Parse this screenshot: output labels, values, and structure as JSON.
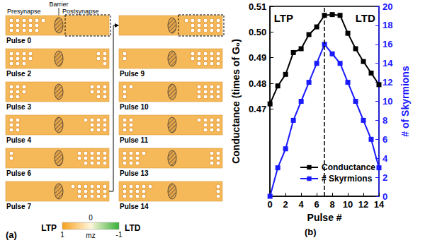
{
  "panel_a": {
    "letter": "(a)",
    "labels": {
      "presynapse": "Presynapse",
      "barrier": "Barrier",
      "postsynapse": "Postsynapse"
    },
    "columns": [
      {
        "title": "LTP",
        "frames": [
          {
            "label": "Pulse 0",
            "pulse": 0
          },
          {
            "label": "Pulse 2",
            "pulse": 2
          },
          {
            "label": "Pulse 3",
            "pulse": 3
          },
          {
            "label": "Pulse 4",
            "pulse": 4
          },
          {
            "label": "Pulse 6",
            "pulse": 6
          },
          {
            "label": "Pulse 7",
            "pulse": 7
          }
        ]
      },
      {
        "title": "LTD",
        "frames": [
          {
            "pulse": 7
          },
          {
            "label": "Pulse 9",
            "pulse": 9
          },
          {
            "label": "Pulse 10",
            "pulse": 10
          },
          {
            "label": "Pulse 11",
            "pulse": 11
          },
          {
            "label": "Pulse 13",
            "pulse": 13
          },
          {
            "label": "Pulse 14",
            "pulse": 14
          }
        ]
      }
    ],
    "colorbar": {
      "title": "mz",
      "range": [
        1,
        -1
      ],
      "ticks": [
        1,
        0,
        -1
      ],
      "colors": [
        "#f7a01e",
        "#fff6dc",
        "#35b035"
      ]
    }
  },
  "chart_data": {
    "type": "line",
    "letter": "(b)",
    "x": [
      0,
      1,
      2,
      3,
      4,
      5,
      6,
      7,
      8,
      9,
      10,
      11,
      12,
      13,
      14
    ],
    "xlim": [
      0,
      14
    ],
    "xticks": [
      0,
      2,
      4,
      6,
      8,
      10,
      12,
      14
    ],
    "xlabel": "Pulse #",
    "ylabel": "Conductance (times of G₀)",
    "y2label": "# of Skyrmions",
    "ylim": [
      0.436,
      0.51
    ],
    "yticks": [
      0.47,
      0.48,
      0.49,
      {
        "value": 0.5,
        "label": "0.50"
      },
      0.51
    ],
    "y2lim": [
      0,
      20
    ],
    "y2ticks": [
      0,
      2,
      4,
      6,
      8,
      10,
      12,
      14,
      16,
      18,
      20
    ],
    "series": [
      {
        "name": "Conductance",
        "color": "#000000",
        "marker": "square",
        "values": [
          0.472,
          0.479,
          0.4835,
          0.492,
          0.4935,
          0.499,
          0.502,
          0.5065,
          0.5068,
          0.5065,
          0.4995,
          0.4935,
          0.4885,
          0.484,
          0.4795
        ]
      },
      {
        "name": "# Skyrmions",
        "color": "#1a1aff",
        "marker": "square",
        "axis": "y2",
        "values": [
          0,
          3,
          5,
          8,
          10,
          12,
          14,
          16,
          15,
          14,
          12,
          10,
          8,
          6,
          3
        ]
      }
    ],
    "divider_x": 7,
    "annotations": [
      "LTP",
      "LTD"
    ],
    "legend": "bottom",
    "grid": false
  }
}
